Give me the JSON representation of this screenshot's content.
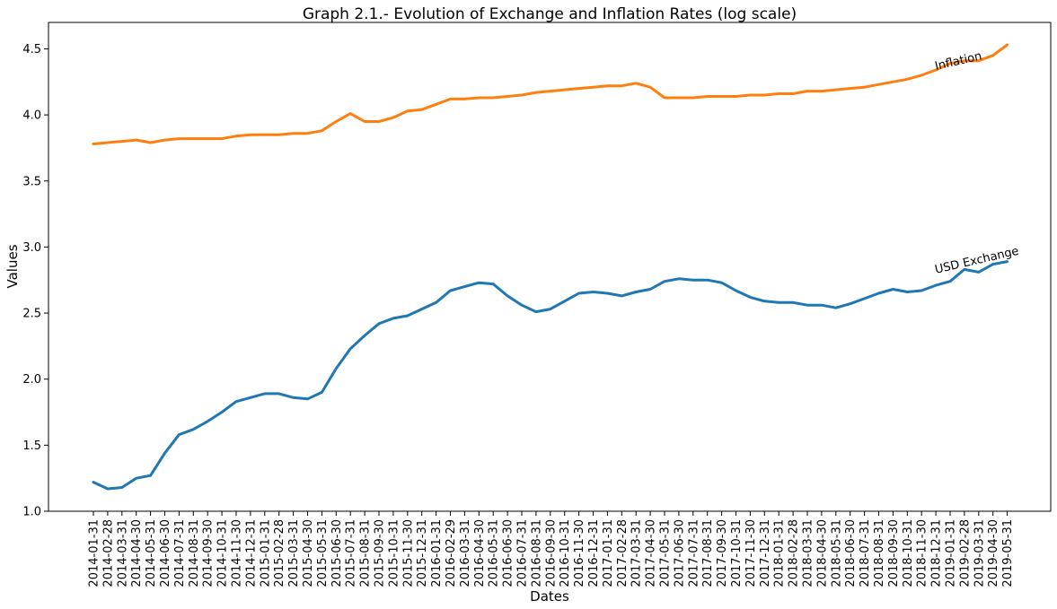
{
  "chart_data": {
    "type": "line",
    "title": "Graph 2.1.- Evolution of Exchange and Inflation Rates (log scale)",
    "xlabel": "Dates",
    "ylabel": "Values",
    "ylim": [
      1.0,
      4.7
    ],
    "yticks": [
      1.0,
      1.5,
      2.0,
      2.5,
      3.0,
      3.5,
      4.0,
      4.5
    ],
    "ytick_labels": [
      "1.0",
      "1.5",
      "2.0",
      "2.5",
      "3.0",
      "3.5",
      "4.0",
      "4.5"
    ],
    "grid": false,
    "x": [
      "2014-01-31",
      "2014-02-28",
      "2014-03-31",
      "2014-04-30",
      "2014-05-31",
      "2014-06-30",
      "2014-07-31",
      "2014-08-31",
      "2014-09-30",
      "2014-10-31",
      "2014-11-30",
      "2014-12-31",
      "2015-01-31",
      "2015-02-28",
      "2015-03-31",
      "2015-04-30",
      "2015-05-31",
      "2015-06-30",
      "2015-07-31",
      "2015-08-31",
      "2015-09-30",
      "2015-10-31",
      "2015-11-30",
      "2015-12-31",
      "2016-01-31",
      "2016-02-29",
      "2016-03-31",
      "2016-04-30",
      "2016-05-31",
      "2016-06-30",
      "2016-07-31",
      "2016-08-31",
      "2016-09-30",
      "2016-10-31",
      "2016-11-30",
      "2016-12-31",
      "2017-01-31",
      "2017-02-28",
      "2017-03-31",
      "2017-04-30",
      "2017-05-31",
      "2017-06-30",
      "2017-07-31",
      "2017-08-31",
      "2017-09-30",
      "2017-10-31",
      "2017-11-30",
      "2017-12-31",
      "2018-01-31",
      "2018-02-28",
      "2018-03-31",
      "2018-04-30",
      "2018-05-31",
      "2018-06-30",
      "2018-07-31",
      "2018-08-31",
      "2018-09-30",
      "2018-10-31",
      "2018-11-30",
      "2018-12-31",
      "2019-01-31",
      "2019-02-28",
      "2019-03-31",
      "2019-04-30",
      "2019-05-31"
    ],
    "series": [
      {
        "name": "USD Exchange",
        "color": "#1f77b4",
        "values": [
          1.22,
          1.17,
          1.18,
          1.25,
          1.27,
          1.44,
          1.58,
          1.62,
          1.68,
          1.75,
          1.83,
          1.86,
          1.89,
          1.89,
          1.86,
          1.85,
          1.9,
          2.08,
          2.23,
          2.33,
          2.42,
          2.46,
          2.48,
          2.53,
          2.58,
          2.67,
          2.7,
          2.73,
          2.72,
          2.63,
          2.56,
          2.51,
          2.53,
          2.59,
          2.65,
          2.66,
          2.65,
          2.63,
          2.66,
          2.68,
          2.74,
          2.76,
          2.75,
          2.75,
          2.73,
          2.67,
          2.62,
          2.59,
          2.58,
          2.58,
          2.56,
          2.56,
          2.54,
          2.57,
          2.61,
          2.65,
          2.68,
          2.66,
          2.67,
          2.71,
          2.74,
          2.83,
          2.81,
          2.87,
          2.89
        ]
      },
      {
        "name": "Inflation",
        "color": "#ff7f0e",
        "values": [
          3.78,
          3.79,
          3.8,
          3.81,
          3.79,
          3.81,
          3.82,
          3.82,
          3.82,
          3.82,
          3.84,
          3.85,
          3.85,
          3.85,
          3.86,
          3.86,
          3.88,
          3.95,
          4.01,
          3.95,
          3.95,
          3.98,
          4.03,
          4.04,
          4.08,
          4.12,
          4.12,
          4.13,
          4.13,
          4.14,
          4.15,
          4.17,
          4.18,
          4.19,
          4.2,
          4.21,
          4.22,
          4.22,
          4.24,
          4.21,
          4.13,
          4.13,
          4.13,
          4.14,
          4.14,
          4.14,
          4.15,
          4.15,
          4.16,
          4.16,
          4.18,
          4.18,
          4.19,
          4.2,
          4.21,
          4.23,
          4.25,
          4.27,
          4.3,
          4.34,
          4.39,
          4.41,
          4.41,
          4.45,
          4.53
        ]
      }
    ],
    "annotations": [
      {
        "text": "Inflation",
        "series": "Inflation",
        "at_x": "2018-12-31",
        "value": 4.34
      },
      {
        "text": "USD Exchange",
        "series": "USD Exchange",
        "at_x": "2018-12-31",
        "value": 2.8
      }
    ]
  }
}
